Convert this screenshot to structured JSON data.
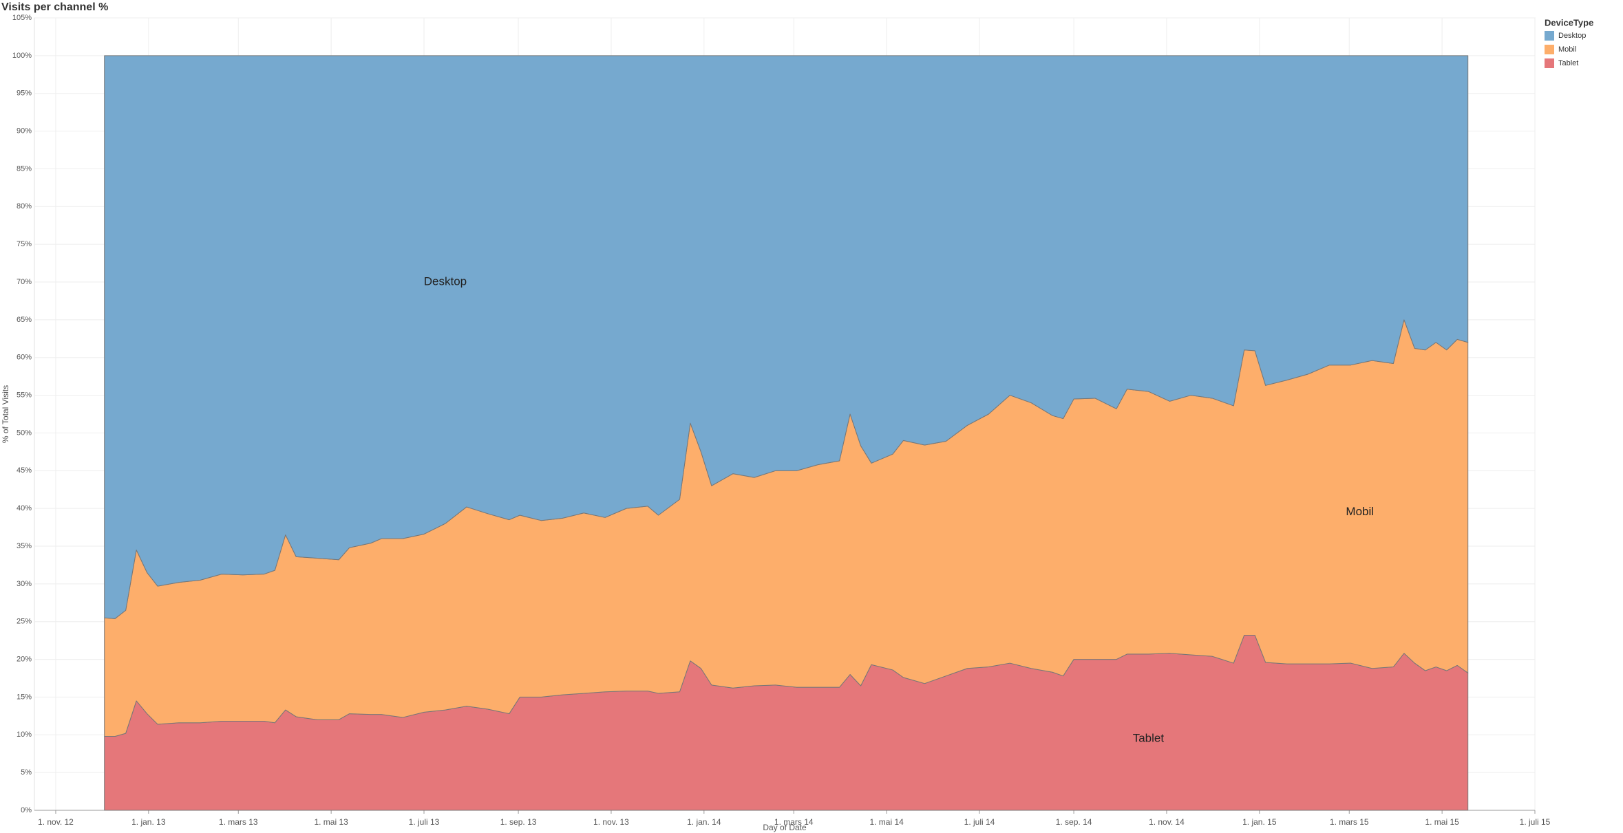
{
  "chart_data": {
    "type": "stacked_area",
    "title": "Visits per channel %",
    "x_label": "Day of Date",
    "y_label": "% of Total Visits",
    "legend_title": "DeviceType",
    "legend": "right",
    "grid": true,
    "x": [
      "2012-12-03",
      "2012-12-10",
      "2012-12-17",
      "2012-12-24",
      "2012-12-31",
      "2013-01-07",
      "2013-01-21",
      "2013-02-04",
      "2013-02-18",
      "2013-03-04",
      "2013-03-18",
      "2013-03-25",
      "2013-04-01",
      "2013-04-08",
      "2013-04-22",
      "2013-05-06",
      "2013-05-13",
      "2013-05-27",
      "2013-06-03",
      "2013-06-17",
      "2013-07-01",
      "2013-07-15",
      "2013-07-29",
      "2013-08-12",
      "2013-08-26",
      "2013-09-02",
      "2013-09-16",
      "2013-09-30",
      "2013-10-14",
      "2013-10-28",
      "2013-11-11",
      "2013-11-25",
      "2013-12-02",
      "2013-12-16",
      "2013-12-23",
      "2013-12-30",
      "2014-01-06",
      "2014-01-20",
      "2014-02-03",
      "2014-02-17",
      "2014-03-03",
      "2014-03-17",
      "2014-03-31",
      "2014-04-07",
      "2014-04-14",
      "2014-04-21",
      "2014-05-05",
      "2014-05-12",
      "2014-05-26",
      "2014-06-09",
      "2014-06-23",
      "2014-07-07",
      "2014-07-21",
      "2014-08-04",
      "2014-08-18",
      "2014-08-25",
      "2014-09-01",
      "2014-09-15",
      "2014-09-29",
      "2014-10-06",
      "2014-10-20",
      "2014-11-03",
      "2014-11-17",
      "2014-12-01",
      "2014-12-15",
      "2014-12-22",
      "2014-12-29",
      "2015-01-05",
      "2015-01-19",
      "2015-02-02",
      "2015-02-16",
      "2015-03-02",
      "2015-03-16",
      "2015-03-30",
      "2015-04-06",
      "2015-04-13",
      "2015-04-20",
      "2015-04-27",
      "2015-05-04",
      "2015-05-11",
      "2015-05-18"
    ],
    "series": [
      {
        "name": "Desktop",
        "color": "#76a9cf",
        "values": [
          74.5,
          74.6,
          73.5,
          65.5,
          68.5,
          70.3,
          69.8,
          69.5,
          68.7,
          68.8,
          68.7,
          68.2,
          63.5,
          66.4,
          66.6,
          66.8,
          65.2,
          64.6,
          64.0,
          64.0,
          63.4,
          62.0,
          59.8,
          60.7,
          61.5,
          60.9,
          61.6,
          61.3,
          60.6,
          61.2,
          60.0,
          59.7,
          60.9,
          58.8,
          48.7,
          52.5,
          57.0,
          55.4,
          55.9,
          55.0,
          55.0,
          54.2,
          53.7,
          47.5,
          51.7,
          54.0,
          52.8,
          51.0,
          51.6,
          51.1,
          49.0,
          47.5,
          45.0,
          46.0,
          47.7,
          48.1,
          45.5,
          45.4,
          46.8,
          44.2,
          44.5,
          45.8,
          45.0,
          45.4,
          46.4,
          39.0,
          39.1,
          43.7,
          43.0,
          42.2,
          41.0,
          41.0,
          40.4,
          40.8,
          35.0,
          38.8,
          39.0,
          38.0,
          39.0,
          37.6,
          38.0
        ]
      },
      {
        "name": "Mobil",
        "color": "#fdae6b",
        "values": [
          15.7,
          15.6,
          16.3,
          20.0,
          18.7,
          18.3,
          18.6,
          18.9,
          19.5,
          19.4,
          19.5,
          20.2,
          23.2,
          21.2,
          21.4,
          21.2,
          22.0,
          22.7,
          23.3,
          23.7,
          23.6,
          24.7,
          26.4,
          25.9,
          25.7,
          24.1,
          23.4,
          23.4,
          23.9,
          23.1,
          24.2,
          24.5,
          23.6,
          25.5,
          31.5,
          28.7,
          26.4,
          28.4,
          27.6,
          28.4,
          28.7,
          29.5,
          30.0,
          34.5,
          31.8,
          26.7,
          28.6,
          31.4,
          31.6,
          31.1,
          32.2,
          33.5,
          35.5,
          35.2,
          34.0,
          34.1,
          34.5,
          34.6,
          33.2,
          35.1,
          34.8,
          33.4,
          34.4,
          34.2,
          34.1,
          37.8,
          37.7,
          36.7,
          37.6,
          38.4,
          39.6,
          39.5,
          40.8,
          40.2,
          44.2,
          41.7,
          42.5,
          43.0,
          42.5,
          43.2,
          43.8
        ]
      },
      {
        "name": "Tablet",
        "color": "#e5777a",
        "values": [
          9.8,
          9.8,
          10.2,
          14.5,
          12.8,
          11.4,
          11.6,
          11.6,
          11.8,
          11.8,
          11.8,
          11.6,
          13.3,
          12.4,
          12.0,
          12.0,
          12.8,
          12.7,
          12.7,
          12.3,
          13.0,
          13.3,
          13.8,
          13.4,
          12.8,
          15.0,
          15.0,
          15.3,
          15.5,
          15.7,
          15.8,
          15.8,
          15.5,
          15.7,
          19.8,
          18.8,
          16.6,
          16.2,
          16.5,
          16.6,
          16.3,
          16.3,
          16.3,
          18.0,
          16.5,
          19.3,
          18.6,
          17.6,
          16.8,
          17.8,
          18.8,
          19.0,
          19.5,
          18.8,
          18.3,
          17.8,
          20.0,
          20.0,
          20.0,
          20.7,
          20.7,
          20.8,
          20.6,
          20.4,
          19.5,
          23.2,
          23.2,
          19.6,
          19.4,
          19.4,
          19.4,
          19.5,
          18.8,
          19.0,
          20.8,
          19.5,
          18.5,
          19.0,
          18.5,
          19.2,
          18.2
        ]
      }
    ],
    "xlim": [
      "2012-10-18",
      "2015-07-01"
    ],
    "xticks": [
      {
        "value": "2012-11-01",
        "label": "1. nov. 12"
      },
      {
        "value": "2013-01-01",
        "label": "1. jan. 13"
      },
      {
        "value": "2013-03-01",
        "label": "1. mars 13"
      },
      {
        "value": "2013-05-01",
        "label": "1. mai 13"
      },
      {
        "value": "2013-07-01",
        "label": "1. juli 13"
      },
      {
        "value": "2013-09-01",
        "label": "1. sep. 13"
      },
      {
        "value": "2013-11-01",
        "label": "1. nov. 13"
      },
      {
        "value": "2014-01-01",
        "label": "1. jan. 14"
      },
      {
        "value": "2014-03-01",
        "label": "1. mars 14"
      },
      {
        "value": "2014-05-01",
        "label": "1. mai 14"
      },
      {
        "value": "2014-07-01",
        "label": "1. juli 14"
      },
      {
        "value": "2014-09-01",
        "label": "1. sep. 14"
      },
      {
        "value": "2014-11-01",
        "label": "1. nov. 14"
      },
      {
        "value": "2015-01-01",
        "label": "1. jan. 15"
      },
      {
        "value": "2015-03-01",
        "label": "1. mars 15"
      },
      {
        "value": "2015-05-01",
        "label": "1. mai 15"
      },
      {
        "value": "2015-07-01",
        "label": "1. juli 15"
      }
    ],
    "ylim": [
      0,
      105
    ],
    "yticks": [
      {
        "value": 0,
        "label": "0%"
      },
      {
        "value": 5,
        "label": "5%"
      },
      {
        "value": 10,
        "label": "10%"
      },
      {
        "value": 15,
        "label": "15%"
      },
      {
        "value": 20,
        "label": "20%"
      },
      {
        "value": 25,
        "label": "25%"
      },
      {
        "value": 30,
        "label": "30%"
      },
      {
        "value": 35,
        "label": "35%"
      },
      {
        "value": 40,
        "label": "40%"
      },
      {
        "value": 45,
        "label": "45%"
      },
      {
        "value": 50,
        "label": "50%"
      },
      {
        "value": 55,
        "label": "55%"
      },
      {
        "value": 60,
        "label": "60%"
      },
      {
        "value": 65,
        "label": "65%"
      },
      {
        "value": 70,
        "label": "70%"
      },
      {
        "value": 75,
        "label": "75%"
      },
      {
        "value": 80,
        "label": "80%"
      },
      {
        "value": 85,
        "label": "85%"
      },
      {
        "value": 90,
        "label": "90%"
      },
      {
        "value": 95,
        "label": "95%"
      },
      {
        "value": 100,
        "label": "100%"
      },
      {
        "value": 105,
        "label": "105%"
      }
    ],
    "annotations": [
      {
        "text": "Desktop",
        "x": "2013-07-15",
        "y": 70
      },
      {
        "text": "Mobil",
        "x": "2015-03-08",
        "y": 39.5
      },
      {
        "text": "Tablet",
        "x": "2014-10-20",
        "y": 9.5
      }
    ]
  }
}
